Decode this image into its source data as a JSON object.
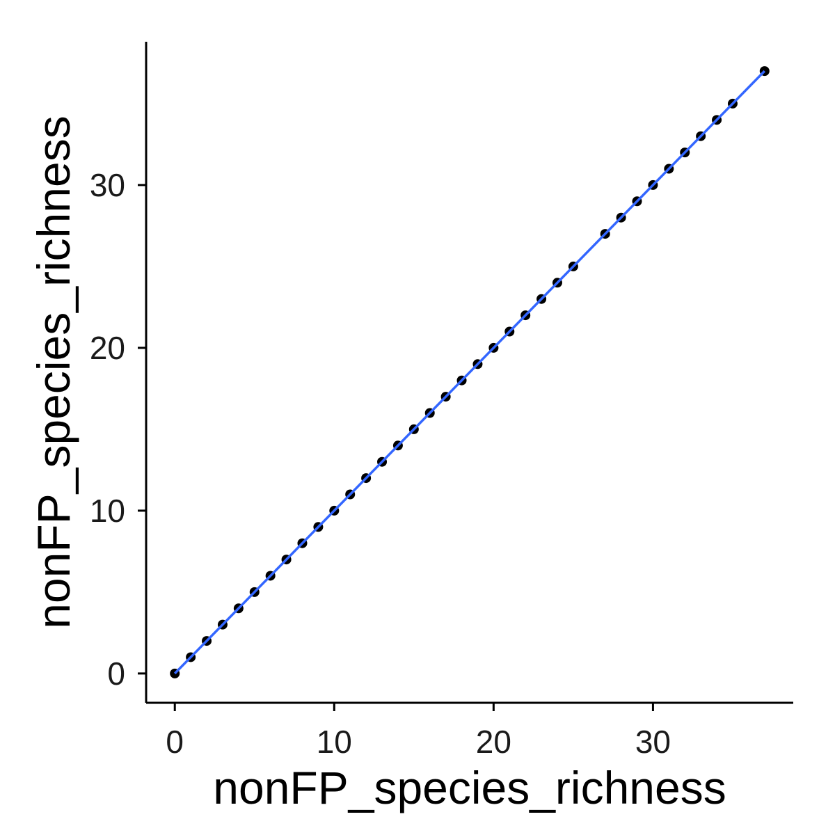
{
  "chart_data": {
    "type": "scatter",
    "title": "",
    "xlabel": "nonFP_species_richness",
    "ylabel": "nonFP_species_richness",
    "xlim": [
      -1.8,
      38.8
    ],
    "ylim": [
      -1.8,
      38.8
    ],
    "x_ticks": [
      0,
      10,
      20,
      30
    ],
    "y_ticks": [
      0,
      10,
      20,
      30
    ],
    "grid": false,
    "legend": "none",
    "points": {
      "x": [
        0,
        1,
        2,
        3,
        4,
        5,
        6,
        7,
        8,
        9,
        10,
        11,
        12,
        13,
        14,
        15,
        16,
        17,
        18,
        19,
        20,
        21,
        22,
        23,
        24,
        25,
        27,
        28,
        29,
        30,
        31,
        32,
        33,
        34,
        35,
        37
      ],
      "y": [
        0,
        1,
        2,
        3,
        4,
        5,
        6,
        7,
        8,
        9,
        10,
        11,
        12,
        13,
        14,
        15,
        16,
        17,
        18,
        19,
        20,
        21,
        22,
        23,
        24,
        25,
        27,
        28,
        29,
        30,
        31,
        32,
        33,
        34,
        35,
        37
      ]
    },
    "fit_line": {
      "x": [
        0,
        37
      ],
      "y": [
        0,
        37
      ]
    },
    "colors": {
      "points": "#000000",
      "fit_line": "#3366FF",
      "axis": "#000000"
    }
  }
}
